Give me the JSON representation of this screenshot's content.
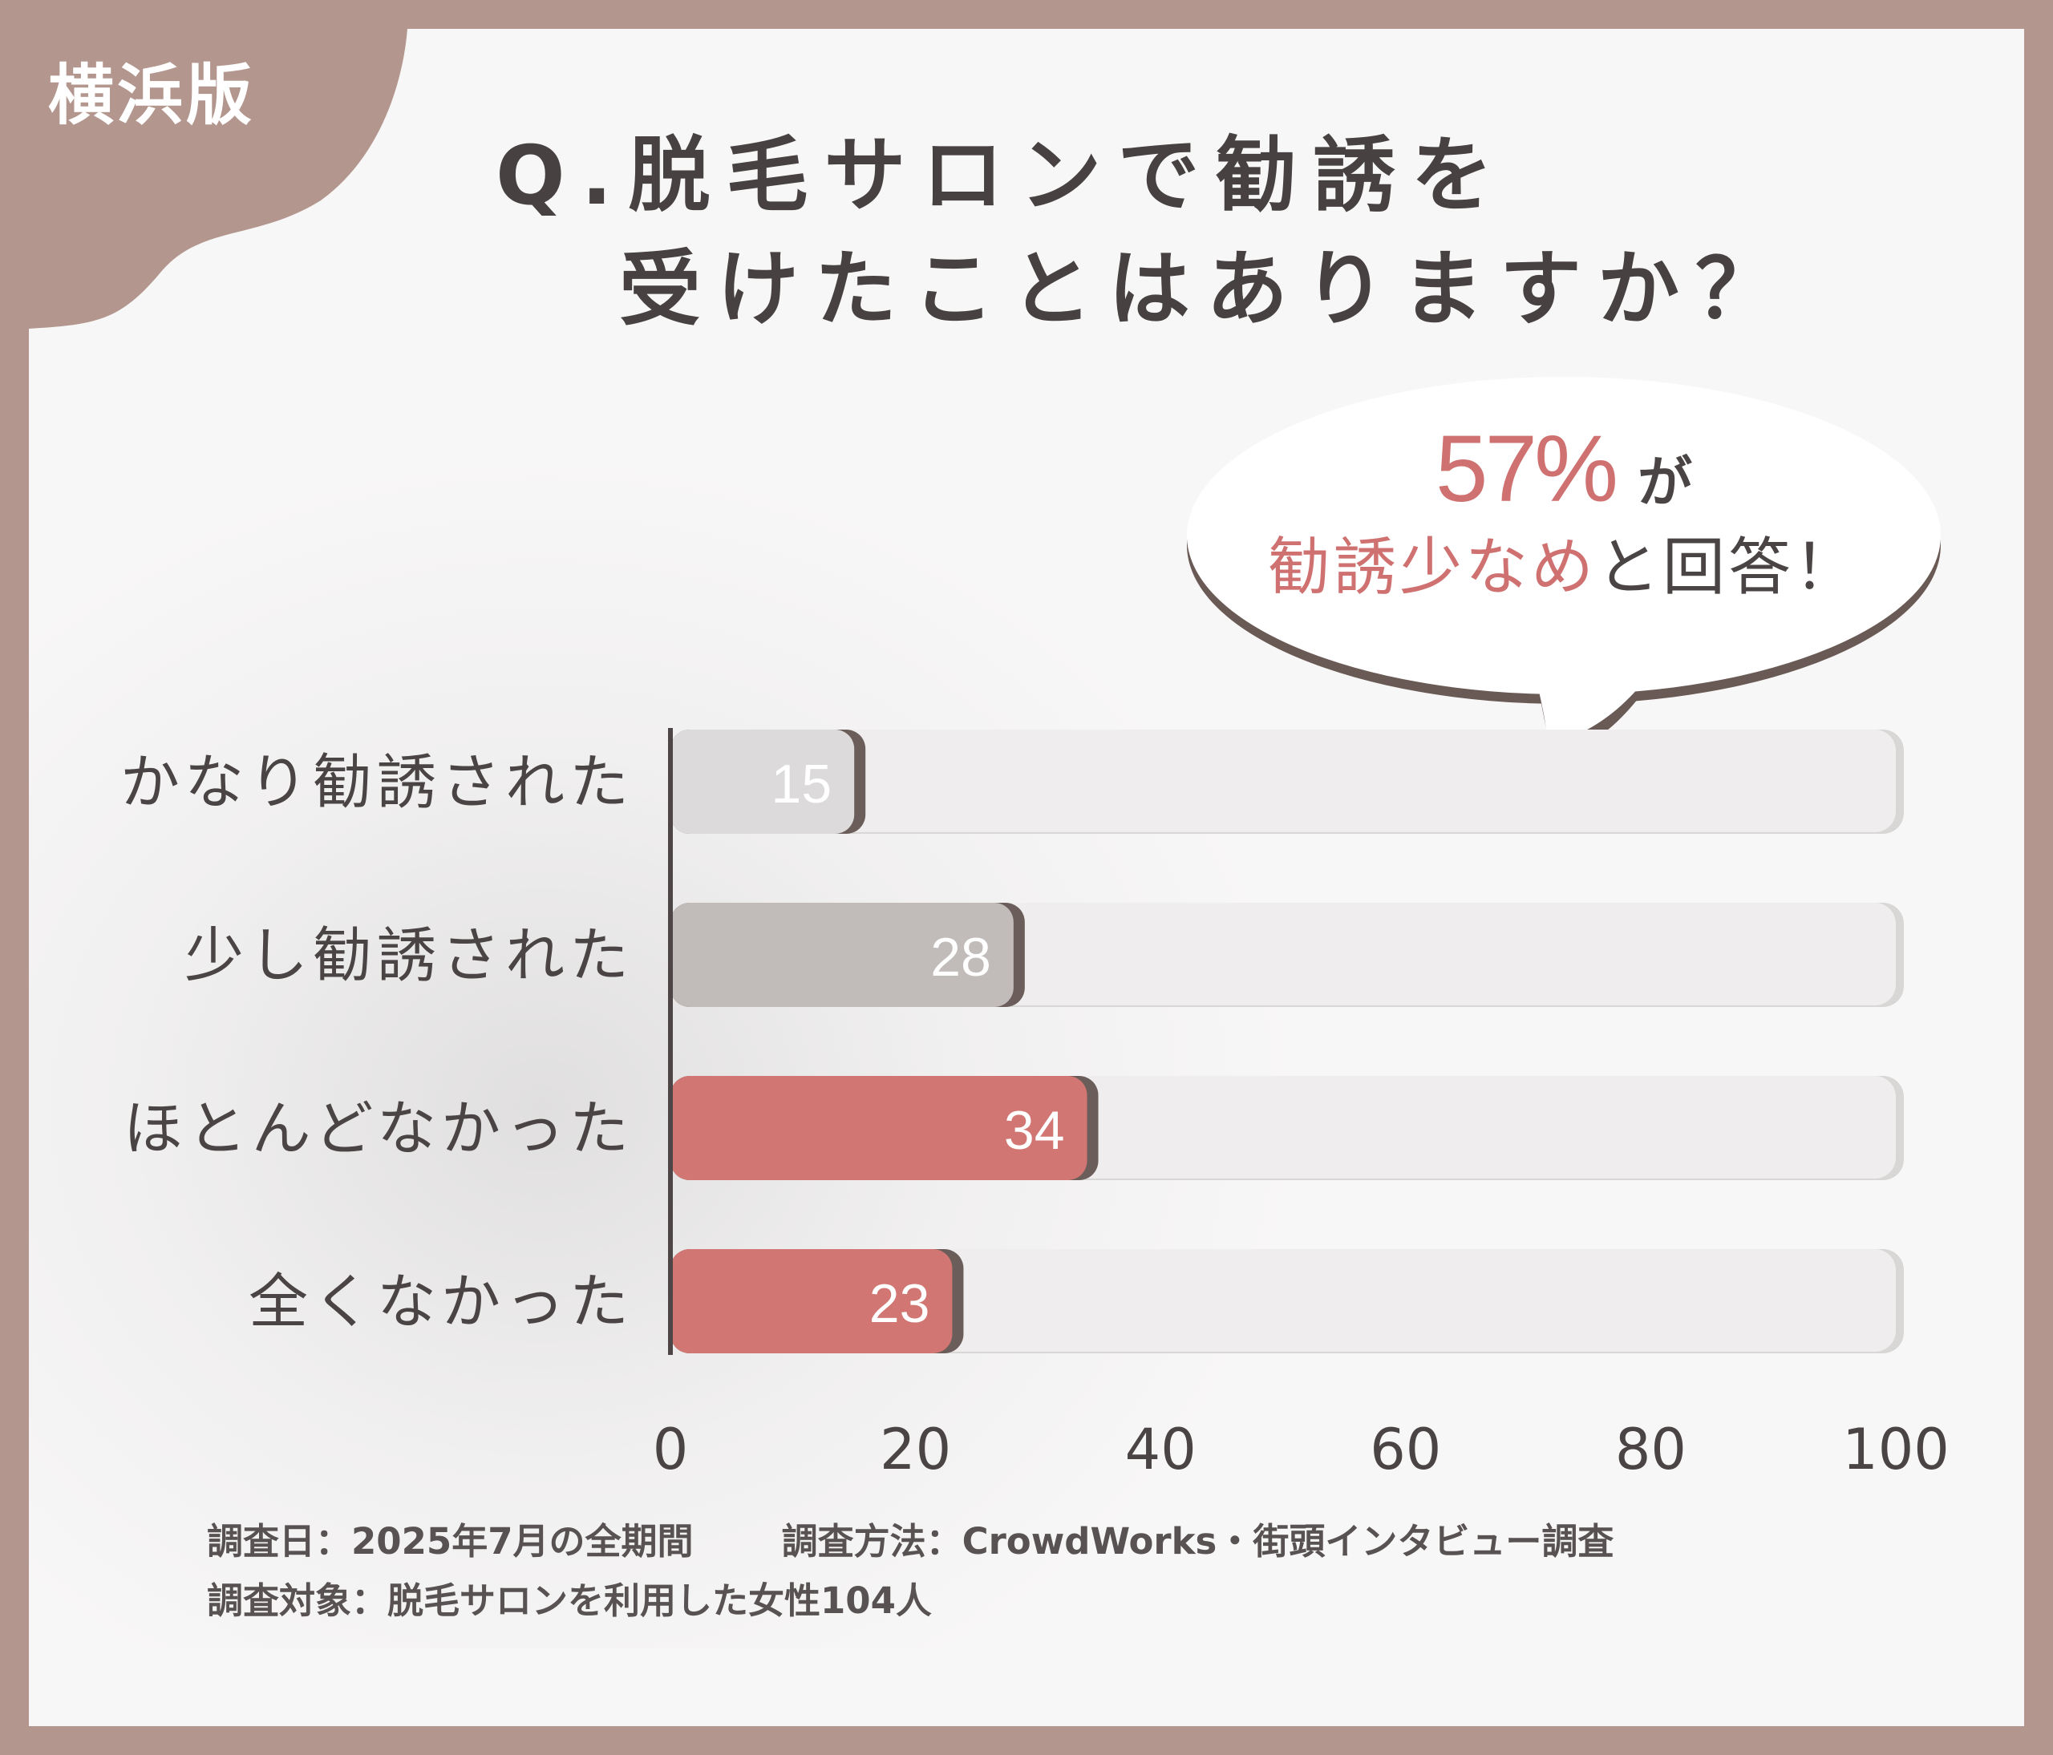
{
  "badge": {
    "label": "横浜版"
  },
  "question": {
    "line1": "Q.脱毛サロンで勧誘を",
    "line2": "受けたことはありますか？"
  },
  "callout": {
    "percent": "57%",
    "connector": "が",
    "highlight": "勧誘少なめ",
    "rest": "と回答！"
  },
  "chart_data": {
    "type": "bar",
    "orientation": "horizontal",
    "categories": [
      "かなり勧誘された",
      "少し勧誘された",
      "ほとんどなかった",
      "全くなかった"
    ],
    "values": [
      15,
      28,
      34,
      23
    ],
    "data_labels": [
      "15",
      "28",
      "34",
      "23"
    ],
    "xlim": [
      0,
      100
    ],
    "xticks": [
      0,
      20,
      40,
      60,
      80,
      100
    ],
    "xtick_labels": [
      "0",
      "20",
      "40",
      "60",
      "80",
      "100"
    ],
    "grid": false,
    "legend": "none",
    "title": "",
    "xlabel": "",
    "ylabel": "",
    "colors": [
      "#dcdada",
      "#c1bbba",
      "#d17673",
      "#d17673"
    ]
  },
  "footer": {
    "date": "調査日：2025年7月の全期間",
    "method": "調査方法：CrowdWorks・街頭インタビュー調査",
    "target": "調査対象：脱毛サロンを利用した女性104人"
  },
  "colors": {
    "frame": "#b3978e",
    "background": "#f8f7f7",
    "accent": "#cf7170",
    "text": "#474141",
    "track": "#edebeb"
  }
}
